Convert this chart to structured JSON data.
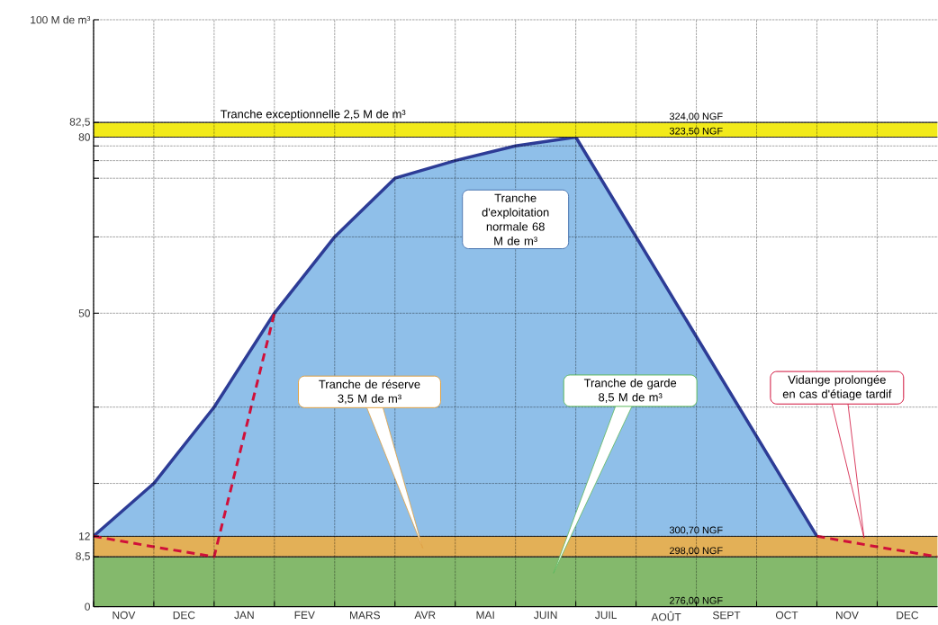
{
  "chart_data": {
    "type": "area",
    "categories": [
      null,
      null,
      null,
      null,
      null,
      null,
      null,
      null,
      null,
      null,
      null,
      null,
      null,
      null,
      null
    ],
    "series": [
      {
        "values": [
          12,
          21,
          34,
          50,
          63,
          73,
          76,
          78.5,
          80,
          63,
          46,
          29,
          12,
          null,
          null
        ],
        "color": "#8fbfe9"
      },
      {
        "type": "line",
        "values": [
          12,
          10.2,
          8.5,
          50,
          null,
          null,
          null,
          null,
          null,
          null,
          null,
          null,
          null,
          null,
          null
        ],
        "color": "#d0103a",
        "line_style": "dashed"
      },
      {
        "type": "line",
        "values": [
          null,
          null,
          null,
          null,
          null,
          null,
          null,
          null,
          null,
          null,
          null,
          null,
          12,
          10.2,
          8.5
        ],
        "color": "#d0103a",
        "line_style": "dashed"
      }
    ],
    "ylim": [
      0,
      100
    ],
    "yticks": [
      0,
      {
        "value": 8.5,
        "label": "8,5"
      },
      12,
      {
        "value": 21,
        "label": null
      },
      {
        "value": 34,
        "label": null
      },
      50,
      {
        "value": 63,
        "label": null
      },
      {
        "value": 73,
        "label": null
      },
      {
        "value": 76,
        "label": null
      },
      {
        "value": 78.5,
        "label": null
      },
      80,
      {
        "value": 82.5,
        "label": "82,5"
      },
      {
        "value": 100,
        "label": "100 M de m³"
      }
    ],
    "grid": true,
    "bands": [
      {
        "axis": "y",
        "from": 0,
        "to": 8.5,
        "color": "#84b96c"
      },
      {
        "axis": "y",
        "from": 8.5,
        "to": 12,
        "color": "#e3b057"
      },
      {
        "axis": "y",
        "from": 80,
        "to": 82.5,
        "color": "#f2ea1a",
        "label": "Tranche exceptionnelle 2,5 M de m³"
      }
    ],
    "annotations": [
      "NOV",
      "DEC",
      "JAN",
      "FEV",
      "MARS",
      "AVR",
      "MAI",
      "JUIN",
      "JUIL",
      "AOÛT",
      "SEPT",
      "OCT",
      "NOV",
      "DEC",
      "Tranche d'exploitation normale 68 M de m³",
      "Tranche de réserve 3,5 M de m³",
      "Tranche de garde 8,5 M de m³",
      "Vidange prolongée en cas d'étiage tardif",
      {
        "text": "324,00 NGF",
        "y": 82.5
      },
      {
        "text": "323,50 NGF",
        "y": 80
      },
      {
        "text": "300,70 NGF",
        "y": 12
      },
      {
        "text": "298,00 NGF",
        "y": 8.5
      },
      {
        "text": "276,00 NGF",
        "y": 0
      }
    ]
  }
}
